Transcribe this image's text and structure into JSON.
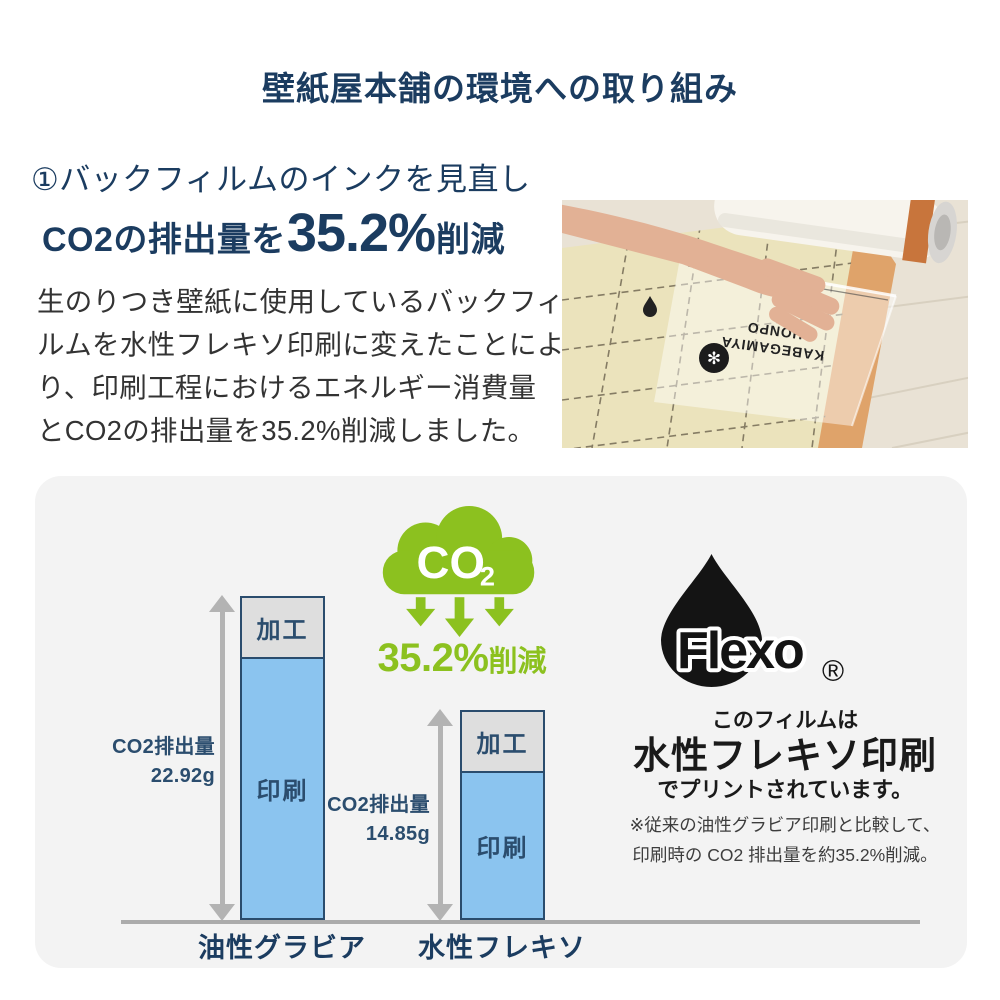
{
  "page": {
    "title": "壁紙屋本舗の環境への取り組み"
  },
  "intro": {
    "section_label": "①バックフィルムのインクを見直し",
    "headline": {
      "prefix": "CO2の排出量を",
      "value": "35.2%",
      "suffix": "削減"
    },
    "body_lines": [
      "生のりつき壁紙に使用しているバックフィ",
      "ルムを水性フレキソ印刷に変えたことによ",
      "り、印刷工程におけるエネルギー消費量",
      "とCO2の排出量を35.2%削減しました。"
    ]
  },
  "photo": {
    "film_brand_line1": "KABEGAMIYA",
    "film_brand_line2": "HONPO"
  },
  "infographic": {
    "co2_cloud": {
      "text": "CO",
      "subscript": "2"
    },
    "reduction_badge": {
      "value": "35.2%",
      "suffix": "削減"
    },
    "chart_data": {
      "type": "bar",
      "stacked": true,
      "categories": [
        "油性グラビア",
        "水性フレキソ"
      ],
      "series": [
        {
          "name": "加工",
          "values": [
            4.3,
            4.3
          ],
          "color": "#dedede"
        },
        {
          "name": "印刷",
          "values": [
            18.62,
            10.55
          ],
          "color": "#8bc4ef"
        }
      ],
      "totals": [
        22.92,
        14.85
      ],
      "total_label_title": "CO2排出量",
      "total_label_values": [
        "22.92g",
        "14.85g"
      ],
      "unit": "g",
      "ylim": [
        0,
        22.92
      ],
      "legend_position": "none",
      "grid": false
    },
    "flexo": {
      "brand": "Flexo",
      "registered": "®"
    },
    "film_note": {
      "line1": "このフィルムは",
      "line2": "水性フレキソ印刷",
      "line3": "でプリントされています。"
    },
    "footnote_lines": [
      "※従来の油性グラビア印刷と比較して、",
      "印刷時の CO2 排出量を約35.2%削減。"
    ]
  },
  "colors": {
    "navy": "#1b3c60",
    "green": "#8cc11f",
    "bar_blue": "#8bc4ef",
    "bar_gray": "#dedede",
    "arrow_gray": "#b3b3b3",
    "card_bg": "#f3f3f3"
  }
}
